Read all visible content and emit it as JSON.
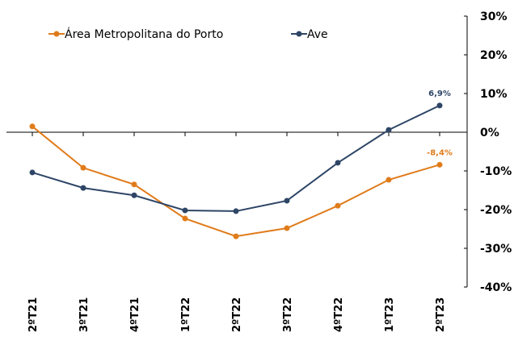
{
  "chart_data": {
    "type": "line",
    "categories": [
      "2ºT21",
      "3ºT21",
      "4ºT21",
      "1ºT22",
      "2ºT22",
      "3ºT22",
      "4ºT22",
      "1ºT23",
      "2ºT23"
    ],
    "series": [
      {
        "name": "Área Metropolitana do Porto",
        "color": "#e07b1a",
        "values": [
          1.5,
          -9.2,
          -13.5,
          -22.3,
          -26.9,
          -24.8,
          -19,
          -12.3,
          -8.4
        ],
        "value_labels": [
          null,
          null,
          null,
          null,
          null,
          null,
          null,
          null,
          "-8,4%"
        ]
      },
      {
        "name": "Ave",
        "color": "#2e4566",
        "values": [
          -10.4,
          -14.4,
          -16.3,
          -20.2,
          -20.4,
          -17.7,
          -7.9,
          0.6,
          6.9
        ],
        "value_labels": [
          null,
          null,
          null,
          null,
          null,
          null,
          null,
          null,
          "6,9%"
        ]
      }
    ],
    "ylim": [
      -40,
      30
    ],
    "yticks": [
      {
        "value": 30,
        "label": "30%"
      },
      {
        "value": 20,
        "label": "20%"
      },
      {
        "value": 10,
        "label": "10%"
      },
      {
        "value": 0,
        "label": "0%"
      },
      {
        "value": -10,
        "label": "-10%"
      },
      {
        "value": -20,
        "label": "-20%"
      },
      {
        "value": -30,
        "label": "-30%"
      },
      {
        "value": -40,
        "label": "-40%"
      }
    ]
  }
}
